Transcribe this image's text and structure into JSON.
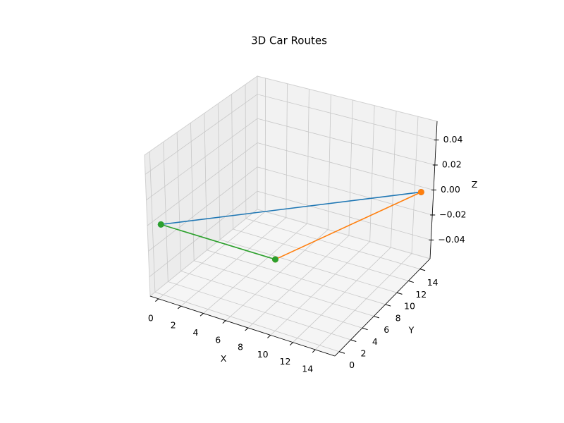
{
  "chart_data": {
    "type": "line3d",
    "title": "3D Car Routes",
    "xlabel": "X",
    "ylabel": "Y",
    "zlabel": "Z",
    "xlim": [
      -0.75,
      15.75
    ],
    "ylim": [
      -0.75,
      15.75
    ],
    "zlim": [
      -0.055,
      0.055
    ],
    "xticks": [
      0,
      2,
      4,
      6,
      8,
      10,
      12,
      14
    ],
    "yticks": [
      0,
      2,
      4,
      6,
      8,
      10,
      12,
      14
    ],
    "zticks": [
      {
        "value": -0.04,
        "label": "−0.04"
      },
      {
        "value": -0.02,
        "label": "−0.02"
      },
      {
        "value": 0,
        "label": "0.00"
      },
      0.02,
      0.04
    ],
    "grid": true,
    "series": [
      {
        "color": "#1f77b4",
        "x": [
          0,
          15
        ],
        "y": [
          0,
          15
        ],
        "z": [
          0,
          0
        ]
      },
      {
        "color": "#ff7f0e",
        "x": [
          15,
          10
        ],
        "y": [
          15,
          0
        ],
        "z": [
          0,
          0
        ]
      },
      {
        "color": "#2ca02c",
        "x": [
          10,
          0
        ],
        "y": [
          0,
          0
        ],
        "z": [
          0,
          0
        ]
      }
    ]
  }
}
